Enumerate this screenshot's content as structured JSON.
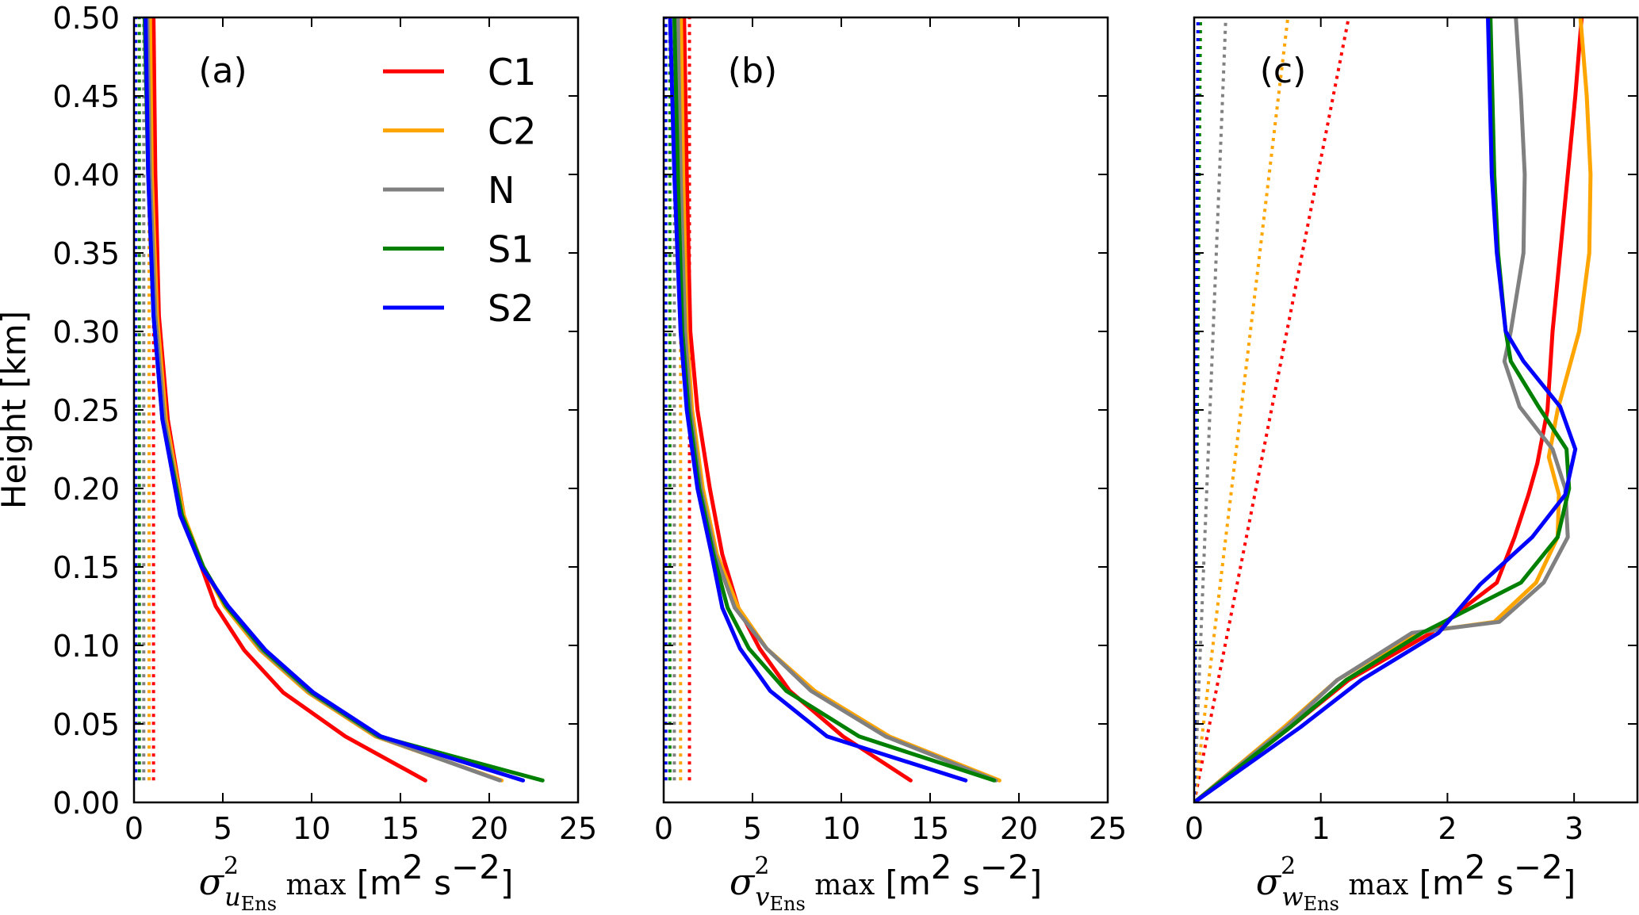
{
  "figure": {
    "ylabel": "Height [km]",
    "legend": [
      {
        "label": "C1",
        "color": "#ff0000"
      },
      {
        "label": "C2",
        "color": "#ffa500"
      },
      {
        "label": "N",
        "color": "#808080"
      },
      {
        "label": "S1",
        "color": "#008000"
      },
      {
        "label": "S2",
        "color": "#0000ff"
      }
    ]
  },
  "chart_data": [
    {
      "type": "line",
      "panel_label": "(a)",
      "xlabel": {
        "symbol": "σ",
        "sup": "2",
        "sub_var": "u",
        "sub_ens": "Ens",
        "suffix": " max",
        "units": "[m² s⁻²]",
        "units_base1": "[m",
        "units_sup1": "2",
        "units_base2": " s",
        "units_sup2": "−2",
        "units_end": "]"
      },
      "ylabel": "Height [km]",
      "xlim": [
        0,
        25
      ],
      "ylim": [
        0,
        0.5
      ],
      "xticks": [
        "0",
        "5",
        "10",
        "15",
        "20",
        "25"
      ],
      "xtick_values": [
        0,
        5,
        10,
        15,
        20,
        25
      ],
      "yticks": [
        "0.00",
        "0.05",
        "0.10",
        "0.15",
        "0.20",
        "0.25",
        "0.30",
        "0.35",
        "0.40",
        "0.45",
        "0.50"
      ],
      "ytick_values": [
        0,
        0.05,
        0.1,
        0.15,
        0.2,
        0.25,
        0.3,
        0.35,
        0.4,
        0.45,
        0.5
      ],
      "show_yticklabels": true,
      "legend": "upper-right",
      "series": [
        {
          "name": "C1",
          "color": "#ff0000",
          "style": "solid",
          "x": [
            16.4,
            11.9,
            8.4,
            6.2,
            4.6,
            3.8,
            2.8,
            1.9,
            1.4,
            1.2,
            1.1
          ],
          "y": [
            0.014,
            0.042,
            0.07,
            0.097,
            0.125,
            0.15,
            0.183,
            0.244,
            0.31,
            0.4,
            0.5
          ]
        },
        {
          "name": "C2",
          "color": "#ffa500",
          "style": "solid",
          "x": [
            20.7,
            13.6,
            9.8,
            7.1,
            5.1,
            3.9,
            2.8,
            1.8,
            1.3,
            1.0,
            0.9
          ],
          "y": [
            0.014,
            0.042,
            0.07,
            0.097,
            0.125,
            0.15,
            0.183,
            0.244,
            0.31,
            0.4,
            0.5
          ]
        },
        {
          "name": "N",
          "color": "#808080",
          "style": "solid",
          "x": [
            20.6,
            13.7,
            9.9,
            7.2,
            5.2,
            3.9,
            2.7,
            1.7,
            1.2,
            0.9,
            0.75
          ],
          "y": [
            0.014,
            0.042,
            0.07,
            0.097,
            0.125,
            0.15,
            0.183,
            0.244,
            0.31,
            0.4,
            0.5
          ]
        },
        {
          "name": "S1",
          "color": "#008000",
          "style": "solid",
          "x": [
            23.0,
            13.8,
            10.0,
            7.3,
            5.2,
            3.9,
            2.7,
            1.6,
            1.1,
            0.8,
            0.6
          ],
          "y": [
            0.014,
            0.042,
            0.07,
            0.097,
            0.125,
            0.15,
            0.183,
            0.244,
            0.31,
            0.4,
            0.5
          ]
        },
        {
          "name": "S2",
          "color": "#0000ff",
          "style": "solid",
          "x": [
            21.9,
            13.9,
            10.1,
            7.4,
            5.3,
            3.8,
            2.6,
            1.6,
            1.1,
            0.8,
            0.65
          ],
          "y": [
            0.014,
            0.042,
            0.07,
            0.097,
            0.125,
            0.15,
            0.183,
            0.244,
            0.31,
            0.4,
            0.5
          ]
        },
        {
          "name": "C1 (dotted)",
          "color": "#ff0000",
          "style": "dotted",
          "x": [
            1.1,
            1.1
          ],
          "y": [
            0.014,
            0.5
          ]
        },
        {
          "name": "C2 (dotted)",
          "color": "#ffa500",
          "style": "dotted",
          "x": [
            0.85,
            0.85
          ],
          "y": [
            0.014,
            0.5
          ]
        },
        {
          "name": "N (dotted)",
          "color": "#808080",
          "style": "dotted",
          "x": [
            0.55,
            0.55
          ],
          "y": [
            0.014,
            0.5
          ]
        },
        {
          "name": "S1 (dotted)",
          "color": "#008000",
          "style": "dotted",
          "x": [
            0.3,
            0.3
          ],
          "y": [
            0.014,
            0.5
          ]
        },
        {
          "name": "S2 (dotted)",
          "color": "#0000ff",
          "style": "dotted",
          "x": [
            0.1,
            0.1
          ],
          "y": [
            0.014,
            0.5
          ]
        }
      ]
    },
    {
      "type": "line",
      "panel_label": "(b)",
      "xlabel": {
        "symbol": "σ",
        "sup": "2",
        "sub_var": "v",
        "sub_ens": "Ens",
        "suffix": " max",
        "units": "[m² s⁻²]",
        "units_base1": "[m",
        "units_sup1": "2",
        "units_base2": " s",
        "units_sup2": "−2",
        "units_end": "]"
      },
      "xlim": [
        0,
        25
      ],
      "ylim": [
        0,
        0.5
      ],
      "xticks": [
        "0",
        "5",
        "10",
        "15",
        "20",
        "25"
      ],
      "xtick_values": [
        0,
        5,
        10,
        15,
        20,
        25
      ],
      "ytick_values": [
        0,
        0.05,
        0.1,
        0.15,
        0.2,
        0.25,
        0.3,
        0.35,
        0.4,
        0.45,
        0.5
      ],
      "show_yticklabels": false,
      "series": [
        {
          "name": "C1",
          "color": "#ff0000",
          "style": "solid",
          "x": [
            13.9,
            10.1,
            7.1,
            5.4,
            4.2,
            3.3,
            2.6,
            1.9,
            1.5,
            1.3,
            1.15
          ],
          "y": [
            0.014,
            0.042,
            0.071,
            0.098,
            0.124,
            0.158,
            0.2,
            0.25,
            0.3,
            0.4,
            0.5
          ]
        },
        {
          "name": "C2",
          "color": "#ffa500",
          "style": "solid",
          "x": [
            18.9,
            12.7,
            8.5,
            5.8,
            4.2,
            3.0,
            2.2,
            1.6,
            1.3,
            1.1,
            0.97
          ],
          "y": [
            0.014,
            0.042,
            0.071,
            0.098,
            0.124,
            0.158,
            0.2,
            0.25,
            0.3,
            0.4,
            0.5
          ]
        },
        {
          "name": "N",
          "color": "#808080",
          "style": "solid",
          "x": [
            18.7,
            12.5,
            8.3,
            5.8,
            4.0,
            2.9,
            2.1,
            1.5,
            1.2,
            0.95,
            0.8
          ],
          "y": [
            0.014,
            0.042,
            0.071,
            0.098,
            0.124,
            0.158,
            0.2,
            0.25,
            0.3,
            0.4,
            0.5
          ]
        },
        {
          "name": "S1",
          "color": "#008000",
          "style": "solid",
          "x": [
            18.6,
            11.0,
            6.9,
            4.8,
            3.6,
            2.8,
            2.0,
            1.4,
            1.05,
            0.8,
            0.6
          ],
          "y": [
            0.014,
            0.042,
            0.071,
            0.098,
            0.124,
            0.158,
            0.2,
            0.25,
            0.3,
            0.4,
            0.5
          ]
        },
        {
          "name": "S2",
          "color": "#0000ff",
          "style": "solid",
          "x": [
            17.0,
            9.2,
            6.0,
            4.3,
            3.3,
            2.7,
            1.9,
            1.3,
            0.95,
            0.6,
            0.36
          ],
          "y": [
            0.014,
            0.042,
            0.071,
            0.098,
            0.124,
            0.158,
            0.2,
            0.25,
            0.3,
            0.4,
            0.5
          ]
        },
        {
          "name": "C1 (dotted)",
          "color": "#ff0000",
          "style": "dotted",
          "x": [
            1.45,
            1.45
          ],
          "y": [
            0.014,
            0.5
          ]
        },
        {
          "name": "C2 (dotted)",
          "color": "#ffa500",
          "style": "dotted",
          "x": [
            0.95,
            0.95
          ],
          "y": [
            0.014,
            0.5
          ]
        },
        {
          "name": "N (dotted)",
          "color": "#808080",
          "style": "dotted",
          "x": [
            0.6,
            0.6
          ],
          "y": [
            0.014,
            0.5
          ]
        },
        {
          "name": "S1 (dotted)",
          "color": "#008000",
          "style": "dotted",
          "x": [
            0.35,
            0.35
          ],
          "y": [
            0.014,
            0.5
          ]
        },
        {
          "name": "S2 (dotted)",
          "color": "#0000ff",
          "style": "dotted",
          "x": [
            0.12,
            0.12
          ],
          "y": [
            0.014,
            0.5
          ]
        }
      ]
    },
    {
      "type": "line",
      "panel_label": "(c)",
      "xlabel": {
        "symbol": "σ",
        "sup": "2",
        "sub_var": "w",
        "sub_ens": "Ens",
        "suffix": " max",
        "units": "[m² s⁻²]",
        "units_base1": "[m",
        "units_sup1": "2",
        "units_base2": " s",
        "units_sup2": "−2",
        "units_end": "]"
      },
      "xlim": [
        0,
        3.5
      ],
      "ylim": [
        0,
        0.5
      ],
      "xticks": [
        "0",
        "1",
        "2",
        "3"
      ],
      "xtick_values": [
        0,
        1,
        2,
        3
      ],
      "ytick_values": [
        0,
        0.05,
        0.1,
        0.15,
        0.2,
        0.25,
        0.3,
        0.35,
        0.4,
        0.45,
        0.5
      ],
      "show_yticklabels": false,
      "series": [
        {
          "name": "C1",
          "color": "#ff0000",
          "style": "solid",
          "x": [
            0,
            0.76,
            1.22,
            1.87,
            2.39,
            2.53,
            2.64,
            2.71,
            2.79,
            2.83,
            2.89,
            2.95,
            3.01,
            3.06
          ],
          "y": [
            0,
            0.048,
            0.078,
            0.108,
            0.14,
            0.169,
            0.196,
            0.216,
            0.25,
            0.3,
            0.35,
            0.4,
            0.45,
            0.5
          ]
        },
        {
          "name": "C2",
          "color": "#ffa500",
          "style": "solid",
          "x": [
            0,
            0.71,
            1.13,
            1.75,
            2.37,
            2.7,
            2.87,
            2.88,
            2.8,
            2.87,
            3.04,
            3.12,
            3.13,
            3.1,
            3.05
          ],
          "y": [
            0,
            0.048,
            0.078,
            0.108,
            0.115,
            0.14,
            0.169,
            0.196,
            0.22,
            0.25,
            0.3,
            0.35,
            0.4,
            0.45,
            0.5
          ]
        },
        {
          "name": "N",
          "color": "#808080",
          "style": "solid",
          "x": [
            0,
            0.73,
            1.13,
            1.72,
            2.41,
            2.76,
            2.95,
            2.93,
            2.83,
            2.57,
            2.45,
            2.5,
            2.6,
            2.61,
            2.58,
            2.54
          ],
          "y": [
            0,
            0.048,
            0.078,
            0.108,
            0.115,
            0.14,
            0.169,
            0.2,
            0.225,
            0.252,
            0.281,
            0.3,
            0.35,
            0.4,
            0.45,
            0.5
          ]
        },
        {
          "name": "S1",
          "color": "#008000",
          "style": "solid",
          "x": [
            0,
            0.76,
            1.2,
            1.8,
            2.58,
            2.87,
            2.96,
            2.94,
            2.72,
            2.5,
            2.46,
            2.4,
            2.37,
            2.34
          ],
          "y": [
            0,
            0.048,
            0.078,
            0.108,
            0.14,
            0.169,
            0.2,
            0.225,
            0.252,
            0.281,
            0.3,
            0.35,
            0.4,
            0.5
          ]
        },
        {
          "name": "S2",
          "color": "#0000ff",
          "style": "solid",
          "x": [
            0,
            0.84,
            1.32,
            1.93,
            2.26,
            2.67,
            2.93,
            3.01,
            2.89,
            2.6,
            2.46,
            2.39,
            2.35,
            2.32
          ],
          "y": [
            0,
            0.048,
            0.078,
            0.108,
            0.139,
            0.169,
            0.196,
            0.225,
            0.252,
            0.281,
            0.3,
            0.35,
            0.4,
            0.5
          ]
        },
        {
          "name": "C1 (dotted)",
          "color": "#ff0000",
          "style": "dotted",
          "x": [
            0,
            1.22
          ],
          "y": [
            0,
            0.5
          ]
        },
        {
          "name": "C2 (dotted)",
          "color": "#ffa500",
          "style": "dotted",
          "x": [
            0,
            0.74
          ],
          "y": [
            0,
            0.5
          ]
        },
        {
          "name": "N (dotted)",
          "color": "#808080",
          "style": "dotted",
          "x": [
            0,
            0.25
          ],
          "y": [
            0,
            0.5
          ]
        },
        {
          "name": "S1 (dotted)",
          "color": "#008000",
          "style": "dotted",
          "x": [
            0,
            0.05
          ],
          "y": [
            0,
            0.5
          ]
        },
        {
          "name": "S2 (dotted)",
          "color": "#0000ff",
          "style": "dotted",
          "x": [
            0,
            0.03
          ],
          "y": [
            0,
            0.5
          ]
        }
      ]
    }
  ]
}
